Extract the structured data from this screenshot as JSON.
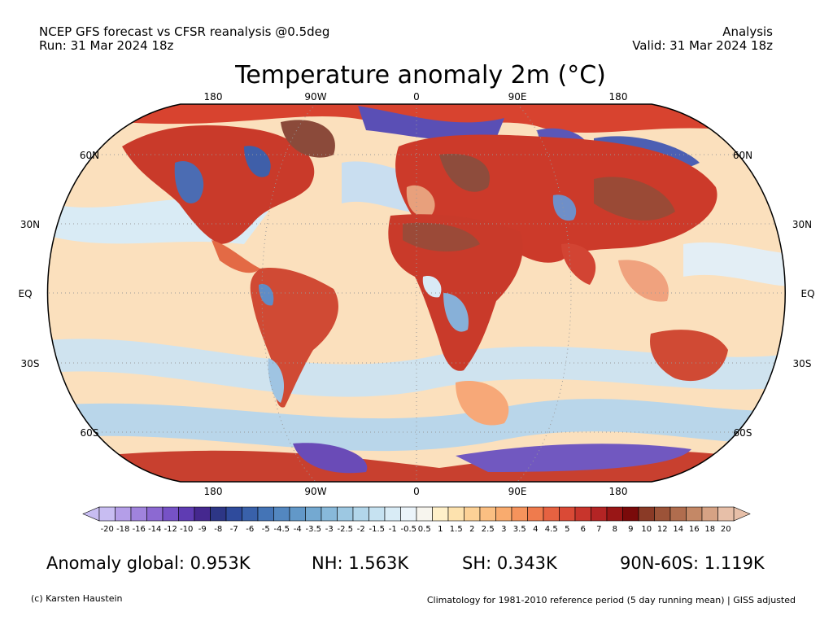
{
  "header": {
    "left_line1": "NCEP GFS forecast vs CFSR reanalysis @0.5deg",
    "left_line2": "Run: 31 Mar 2024 18z",
    "right_line1": "Analysis",
    "right_line2": "Valid: 31 Mar 2024 18z"
  },
  "title": "Temperature anomaly 2m (°C)",
  "map": {
    "lon_labels": [
      "180",
      "90W",
      "0",
      "90E",
      "180"
    ],
    "lat_labels": [
      "60N",
      "30N",
      "EQ",
      "30S",
      "60S"
    ]
  },
  "colorbar": {
    "labels": [
      "-20",
      "-18",
      "-16",
      "-14",
      "-12",
      "-10",
      "-9",
      "-8",
      "-7",
      "-6",
      "-5",
      "-4.5",
      "-4",
      "-3.5",
      "-3",
      "-2.5",
      "-2",
      "-1.5",
      "-1",
      "-0.5",
      "0.5",
      "1",
      "1.5",
      "2",
      "2.5",
      "3",
      "3.5",
      "4",
      "4.5",
      "5",
      "6",
      "7",
      "8",
      "9",
      "10",
      "12",
      "14",
      "16",
      "18",
      "20"
    ],
    "colors": [
      "#c8bdf2",
      "#b49ee8",
      "#a083dd",
      "#8c69d2",
      "#7652c6",
      "#5f3cb3",
      "#45288f",
      "#2d3686",
      "#2f4b9c",
      "#3961aa",
      "#4474b6",
      "#5387c0",
      "#6298c8",
      "#74a9d1",
      "#88b9da",
      "#9dc8e2",
      "#b2d6ea",
      "#c6e2f1",
      "#d9ecf6",
      "#ebf4fa",
      "#f7f5ee",
      "#fff0c9",
      "#fde2ae",
      "#fcd196",
      "#fbbf82",
      "#f9ab6e",
      "#f5935c",
      "#ef7b4d",
      "#e66241",
      "#da4a36",
      "#c8352c",
      "#b32424",
      "#991616",
      "#7a0a0a",
      "#8a3a26",
      "#9c5338",
      "#b06d4e",
      "#c48866",
      "#d6a284",
      "#e7bfa8"
    ]
  },
  "stats": {
    "global": "Anomaly global: 0.953K",
    "nh": "NH: 1.563K",
    "sh": "SH: 0.343K",
    "arctic": "90N-60S: 1.119K"
  },
  "footer": {
    "left": "(c) Karsten Haustein",
    "right": "Climatology for 1981-2010 reference period (5 day running mean) | GISS adjusted"
  }
}
